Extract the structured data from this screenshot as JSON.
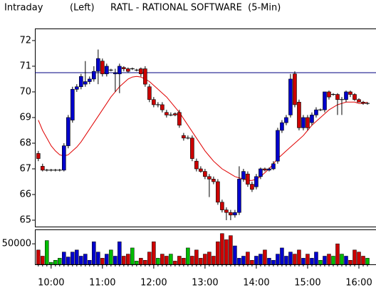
{
  "chart_data": {
    "type": "candlestick",
    "mode": "Intraday",
    "axis_side": "(Left)",
    "title": "RATL - RATIONAL SOFTWARE  (5-Min)",
    "x": [
      585,
      590,
      595,
      600,
      605,
      610,
      615,
      620,
      625,
      630,
      635,
      640,
      645,
      650,
      655,
      660,
      665,
      670,
      675,
      680,
      685,
      690,
      695,
      700,
      705,
      710,
      715,
      720,
      725,
      730,
      735,
      740,
      745,
      750,
      755,
      760,
      765,
      770,
      775,
      780,
      785,
      790,
      795,
      800,
      805,
      810,
      815,
      820,
      825,
      830,
      835,
      840,
      845,
      850,
      855,
      860,
      865,
      870,
      875,
      880,
      885,
      890,
      895,
      900,
      905,
      910,
      915,
      920,
      925,
      930,
      935,
      940,
      945,
      950,
      955,
      960,
      965,
      970
    ],
    "open": [
      67.6,
      67.1,
      66.95,
      66.95,
      66.95,
      66.95,
      66.95,
      67.9,
      68.9,
      70.1,
      70.2,
      70.3,
      70.4,
      70.5,
      70.8,
      71.2,
      70.7,
      70.85,
      70.7,
      70.7,
      70.95,
      70.9,
      70.9,
      70.85,
      70.9,
      70.9,
      70.2,
      69.7,
      69.5,
      69.5,
      69.2,
      69.1,
      69.15,
      69.2,
      68.3,
      68.2,
      68.2,
      67.3,
      67.0,
      66.9,
      66.7,
      66.6,
      66.5,
      65.7,
      65.4,
      65.3,
      65.2,
      65.3,
      66.6,
      66.8,
      66.4,
      66.3,
      66.7,
      67.0,
      66.95,
      67.0,
      67.3,
      68.5,
      68.8,
      69.1,
      70.7,
      69.6,
      68.6,
      69.0,
      68.8,
      69.1,
      69.3,
      69.3,
      70.0,
      69.9,
      69.9,
      69.7,
      69.7,
      70.0,
      69.9,
      69.7,
      69.6,
      69.55
    ],
    "high": [
      67.7,
      67.2,
      67.0,
      67.0,
      67.0,
      67.0,
      68.0,
      69.1,
      70.2,
      70.3,
      70.7,
      71.2,
      70.6,
      71.0,
      71.65,
      71.3,
      71.1,
      70.9,
      70.9,
      71.1,
      71.0,
      70.95,
      70.95,
      70.9,
      70.95,
      71.0,
      70.3,
      69.8,
      69.6,
      69.6,
      69.3,
      69.2,
      69.2,
      69.3,
      68.4,
      68.3,
      68.3,
      67.4,
      67.1,
      67.0,
      66.8,
      66.7,
      66.6,
      65.8,
      65.5,
      65.4,
      65.4,
      67.1,
      67.0,
      66.9,
      66.5,
      66.8,
      67.05,
      67.05,
      67.05,
      67.3,
      68.6,
      68.9,
      69.1,
      70.7,
      70.8,
      69.7,
      69.1,
      69.1,
      69.2,
      69.4,
      69.35,
      70.0,
      70.05,
      69.95,
      69.95,
      69.8,
      70.05,
      70.05,
      69.95,
      69.75,
      69.65,
      69.6
    ],
    "low": [
      67.3,
      66.9,
      66.9,
      66.9,
      66.9,
      66.9,
      66.9,
      67.8,
      68.8,
      70.0,
      70.1,
      70.2,
      70.3,
      70.4,
      70.3,
      70.6,
      70.6,
      70.8,
      70.0,
      69.95,
      70.8,
      70.75,
      70.85,
      70.8,
      70.6,
      70.2,
      69.6,
      69.4,
      69.4,
      69.2,
      69.0,
      69.05,
      69.05,
      68.6,
      68.1,
      68.15,
      67.3,
      66.9,
      66.85,
      66.6,
      65.9,
      66.4,
      65.6,
      65.3,
      65.0,
      65.0,
      65.1,
      65.2,
      66.5,
      66.3,
      66.1,
      66.2,
      66.6,
      66.9,
      66.9,
      66.95,
      67.2,
      68.4,
      68.7,
      69.0,
      69.4,
      68.5,
      68.5,
      68.5,
      68.7,
      69.0,
      69.25,
      69.2,
      69.7,
      69.85,
      69.1,
      69.1,
      69.6,
      69.8,
      69.65,
      69.6,
      69.5,
      69.5
    ],
    "close": [
      67.4,
      66.95,
      66.95,
      66.95,
      66.95,
      66.95,
      67.9,
      69.0,
      70.1,
      70.2,
      70.6,
      70.4,
      70.5,
      70.8,
      71.3,
      70.7,
      71.0,
      70.85,
      70.75,
      71.0,
      70.9,
      70.8,
      70.9,
      70.85,
      70.7,
      70.3,
      69.7,
      69.5,
      69.5,
      69.3,
      69.1,
      69.1,
      69.1,
      68.7,
      68.2,
      68.2,
      67.4,
      67.0,
      66.9,
      66.7,
      66.6,
      66.5,
      65.7,
      65.4,
      65.3,
      65.2,
      65.3,
      66.6,
      66.9,
      66.4,
      66.2,
      66.7,
      67.0,
      66.95,
      67.0,
      67.2,
      68.5,
      68.8,
      69.0,
      70.5,
      69.5,
      68.6,
      69.0,
      68.6,
      69.1,
      69.3,
      69.3,
      70.0,
      69.8,
      69.9,
      69.7,
      69.7,
      70.0,
      69.9,
      69.7,
      69.6,
      69.55,
      69.55
    ],
    "volume": [
      35000,
      20000,
      58000,
      5000,
      10000,
      15000,
      30000,
      18000,
      30000,
      35000,
      20000,
      25000,
      10000,
      55000,
      30000,
      15000,
      25000,
      35000,
      20000,
      55000,
      20000,
      25000,
      40000,
      8000,
      15000,
      10000,
      30000,
      55000,
      15000,
      25000,
      20000,
      25000,
      8000,
      20000,
      15000,
      40000,
      20000,
      35000,
      15000,
      25000,
      30000,
      20000,
      55000,
      75000,
      60000,
      70000,
      45000,
      15000,
      20000,
      30000,
      10000,
      20000,
      25000,
      35000,
      15000,
      10000,
      25000,
      40000,
      20000,
      30000,
      25000,
      35000,
      15000,
      25000,
      15000,
      30000,
      10000,
      20000,
      25000,
      20000,
      50000,
      25000,
      20000,
      10000,
      35000,
      30000,
      20000,
      15000
    ],
    "ma": {
      "color": "#e00000",
      "values": [
        68.9,
        68.5,
        68.2,
        67.9,
        67.7,
        67.55,
        67.5,
        67.55,
        67.7,
        67.85,
        68.05,
        68.3,
        68.55,
        68.8,
        69.05,
        69.3,
        69.55,
        69.8,
        70.0,
        70.2,
        70.35,
        70.5,
        70.58,
        70.6,
        70.58,
        70.5,
        70.4,
        70.25,
        70.1,
        69.95,
        69.8,
        69.6,
        69.4,
        69.2,
        68.95,
        68.7,
        68.45,
        68.2,
        67.95,
        67.7,
        67.5,
        67.3,
        67.15,
        67.0,
        66.9,
        66.8,
        66.7,
        66.65,
        66.6,
        66.55,
        66.55,
        66.6,
        66.7,
        66.85,
        67.0,
        67.2,
        67.4,
        67.55,
        67.7,
        67.85,
        68.0,
        68.15,
        68.3,
        68.5,
        68.7,
        68.85,
        69.0,
        69.15,
        69.3,
        69.4,
        69.5,
        69.55,
        69.6,
        69.6,
        69.6,
        69.55,
        69.55,
        69.6
      ]
    },
    "hline": 70.75,
    "hline_color": "#000080",
    "up_color": "#0000cc",
    "down_color": "#cc0000",
    "flat_color": "#00bb00",
    "xlim": [
      581,
      980
    ],
    "xticks": [
      {
        "value": 600,
        "label": "10:00"
      },
      {
        "value": 660,
        "label": "11:00"
      },
      {
        "value": 720,
        "label": "12:00"
      },
      {
        "value": 780,
        "label": "13:00"
      },
      {
        "value": 840,
        "label": "14:00"
      },
      {
        "value": 900,
        "label": "15:00"
      },
      {
        "value": 960,
        "label": "16:00"
      }
    ],
    "ylim": [
      64.75,
      72.47
    ],
    "yticks": [
      65,
      66,
      67,
      68,
      69,
      70,
      71,
      72
    ],
    "y2lim": [
      0,
      85000
    ],
    "y2ticks": [
      50000
    ]
  }
}
